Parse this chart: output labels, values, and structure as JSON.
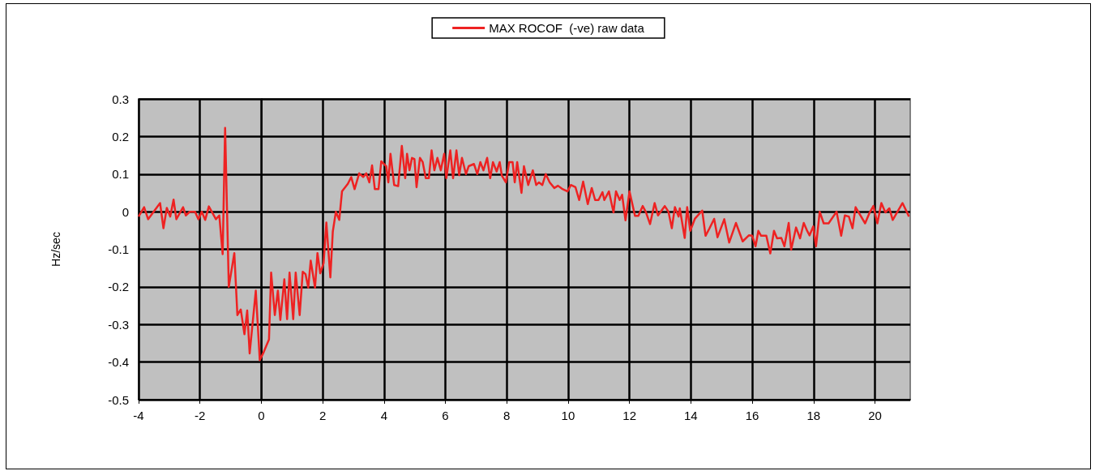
{
  "chart_data": {
    "type": "line",
    "ylabel": "Hz/sec",
    "xlim": [
      -4,
      21.15
    ],
    "xticks": [
      -4,
      -2,
      0,
      2,
      4,
      6,
      8,
      10,
      12,
      14,
      16,
      18,
      20
    ],
    "ylim": [
      -0.5,
      0.3
    ],
    "yticks": [
      -0.5,
      -0.4,
      -0.3,
      -0.2,
      -0.1,
      0,
      0.1,
      0.2,
      0.3
    ],
    "grid": true,
    "legend": "top",
    "marker": "none",
    "line_style": "solid",
    "series": [
      {
        "name": "MAX ROCOF  (-ve) raw data",
        "color": "#ee2222",
        "x": [
          -4,
          -3.82,
          -3.69,
          -3.3,
          -3.19,
          -3.08,
          -2.97,
          -2.86,
          -2.77,
          -2.55,
          -2.46,
          -2.33,
          -2.16,
          -2.05,
          -1.94,
          -1.83,
          -1.71,
          -1.48,
          -1.37,
          -1.26,
          -1.18,
          -1.06,
          -0.88,
          -0.78,
          -0.67,
          -0.55,
          -0.46,
          -0.38,
          -0.18,
          -0.05,
          0.08,
          0.25,
          0.32,
          0.44,
          0.54,
          0.62,
          0.75,
          0.84,
          0.92,
          1.04,
          1.12,
          1.25,
          1.35,
          1.44,
          1.53,
          1.61,
          1.75,
          1.83,
          1.92,
          2.03,
          2.12,
          2.25,
          2.33,
          2.43,
          2.54,
          2.63,
          2.82,
          2.93,
          3.04,
          3.19,
          3.32,
          3.42,
          3.52,
          3.61,
          3.7,
          3.82,
          3.91,
          4.07,
          4.14,
          4.21,
          4.33,
          4.46,
          4.58,
          4.69,
          4.75,
          4.83,
          4.91,
          4.99,
          5.06,
          5.17,
          5.26,
          5.36,
          5.46,
          5.55,
          5.64,
          5.74,
          5.85,
          5.96,
          6.03,
          6.16,
          6.25,
          6.36,
          6.45,
          6.54,
          6.67,
          6.76,
          6.93,
          7.04,
          7.14,
          7.24,
          7.36,
          7.46,
          7.55,
          7.67,
          7.77,
          7.84,
          7.97,
          8.08,
          8.19,
          8.26,
          8.34,
          8.48,
          8.56,
          8.7,
          8.85,
          8.96,
          9.05,
          9.16,
          9.27,
          9.4,
          9.55,
          9.67,
          9.8,
          9.98,
          10.09,
          10.24,
          10.36,
          10.49,
          10.64,
          10.77,
          10.88,
          10.99,
          11.12,
          11.18,
          11.33,
          11.48,
          11.56,
          11.68,
          11.76,
          11.87,
          12,
          12.18,
          12.29,
          12.43,
          12.53,
          12.67,
          12.82,
          12.93,
          13.15,
          13.27,
          13.38,
          13.48,
          13.6,
          13.64,
          13.8,
          13.88,
          13.98,
          14.13,
          14.37,
          14.48,
          14.61,
          14.76,
          14.87,
          15.09,
          15.25,
          15.47,
          15.69,
          15.89,
          16,
          16.11,
          16.2,
          16.29,
          16.46,
          16.59,
          16.71,
          16.81,
          16.95,
          17.05,
          17.19,
          17.27,
          17.43,
          17.56,
          17.68,
          17.78,
          17.87,
          17.99,
          18.08,
          18.2,
          18.33,
          18.49,
          18.75,
          18.9,
          19.02,
          19.15,
          19.27,
          19.37,
          19.68,
          19.83,
          19.95,
          20.08,
          20.21,
          20.34,
          20.47,
          20.58,
          20.72,
          20.9,
          21.11
        ],
        "values": [
          -0.013,
          0.012,
          -0.02,
          0.023,
          -0.044,
          0.01,
          -0.013,
          0.032,
          -0.02,
          0.012,
          -0.01,
          0,
          0,
          -0.02,
          0,
          -0.022,
          0.014,
          -0.02,
          -0.01,
          -0.113,
          0.223,
          -0.2,
          -0.11,
          -0.275,
          -0.26,
          -0.326,
          -0.263,
          -0.377,
          -0.21,
          -0.395,
          -0.373,
          -0.34,
          -0.162,
          -0.275,
          -0.21,
          -0.288,
          -0.18,
          -0.286,
          -0.162,
          -0.286,
          -0.162,
          -0.275,
          -0.16,
          -0.166,
          -0.202,
          -0.13,
          -0.202,
          -0.11,
          -0.164,
          -0.137,
          -0.029,
          -0.175,
          -0.053,
          0,
          -0.022,
          0.054,
          0.074,
          0.092,
          0.06,
          0.102,
          0.092,
          0.102,
          0.078,
          0.123,
          0.06,
          0.06,
          0.134,
          0.121,
          0.078,
          0.154,
          0.071,
          0.068,
          0.175,
          0.089,
          0.154,
          0.11,
          0.143,
          0.14,
          0.065,
          0.143,
          0.132,
          0.089,
          0.089,
          0.163,
          0.11,
          0.143,
          0.11,
          0.154,
          0.089,
          0.163,
          0.089,
          0.163,
          0.097,
          0.143,
          0.1,
          0.121,
          0.127,
          0.1,
          0.132,
          0.11,
          0.143,
          0.089,
          0.132,
          0.107,
          0.132,
          0.096,
          0.078,
          0.132,
          0.132,
          0.078,
          0.132,
          0.05,
          0.121,
          0.071,
          0.11,
          0.071,
          0.078,
          0.071,
          0.1,
          0.078,
          0.063,
          0.069,
          0.061,
          0.054,
          0.071,
          0.065,
          0.031,
          0.08,
          0.02,
          0.063,
          0.031,
          0.031,
          0.052,
          0.031,
          0.054,
          -0.002,
          0.054,
          0.031,
          0.045,
          -0.023,
          0.054,
          -0.011,
          -0.011,
          0.015,
          0,
          -0.033,
          0.023,
          -0.01,
          0.015,
          0,
          -0.044,
          0.012,
          -0.013,
          0.009,
          -0.07,
          0.012,
          -0.051,
          -0.019,
          0.003,
          -0.064,
          -0.044,
          -0.019,
          -0.068,
          -0.02,
          -0.082,
          -0.03,
          -0.079,
          -0.063,
          -0.064,
          -0.092,
          -0.051,
          -0.064,
          -0.064,
          -0.111,
          -0.051,
          -0.071,
          -0.07,
          -0.092,
          -0.03,
          -0.101,
          -0.042,
          -0.071,
          -0.03,
          -0.049,
          -0.063,
          -0.039,
          -0.092,
          0,
          -0.031,
          -0.031,
          0,
          -0.064,
          -0.01,
          -0.013,
          -0.044,
          0.012,
          -0.031,
          -0.002,
          0.015,
          -0.031,
          0.023,
          -0.002,
          0.009,
          -0.022,
          -0.002,
          0.023,
          -0.013
        ]
      }
    ]
  }
}
